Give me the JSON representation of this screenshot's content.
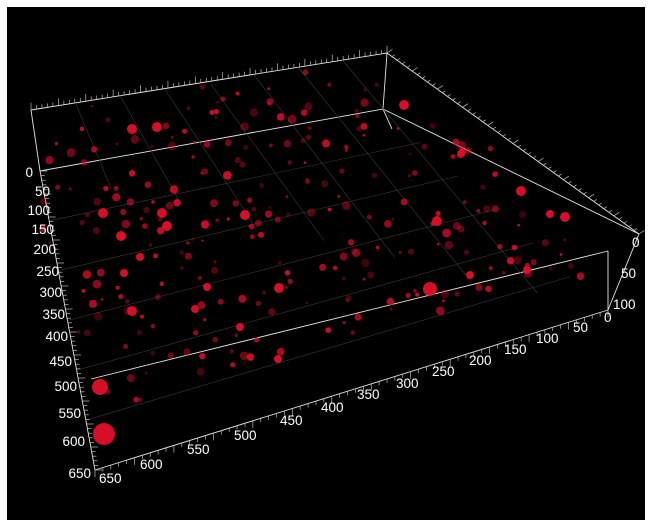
{
  "viewer": {
    "background": "#000000",
    "box_color": "#e6e6e6",
    "spot_color": "#e0102a"
  },
  "axes": {
    "left_vertical": {
      "labels": [
        "0",
        "50",
        "100",
        "150",
        "200",
        "250",
        "300",
        "350",
        "400",
        "450",
        "500",
        "550",
        "600",
        "650"
      ]
    },
    "bottom_front": {
      "labels": [
        "650",
        "600",
        "550",
        "500",
        "450",
        "400",
        "350",
        "300",
        "250",
        "200",
        "150",
        "100",
        "50",
        "0"
      ]
    },
    "right_depth": {
      "labels": [
        "0",
        "50",
        "100"
      ]
    }
  }
}
